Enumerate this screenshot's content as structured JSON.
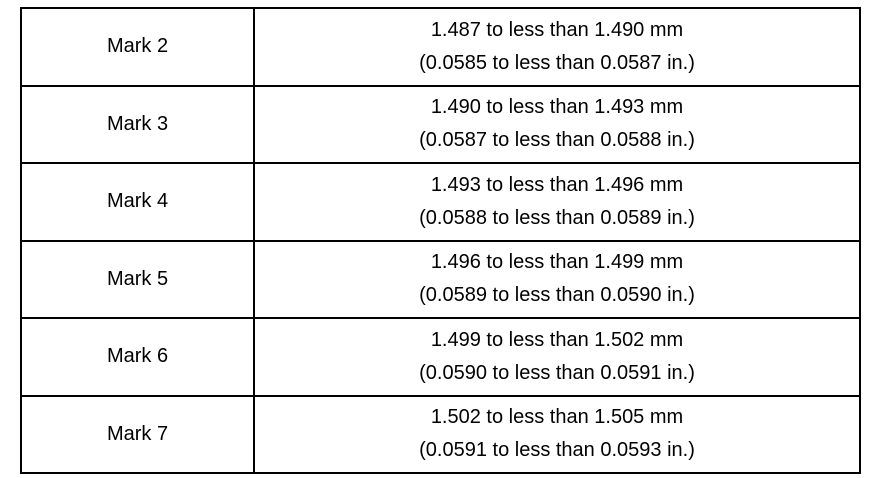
{
  "table": {
    "rows": [
      {
        "mark": "Mark 2",
        "mm": "1.487 to less than 1.490 mm",
        "inch": "(0.0585 to less than 0.0587 in.)"
      },
      {
        "mark": "Mark 3",
        "mm": "1.490 to less than 1.493 mm",
        "inch": "(0.0587 to less than 0.0588 in.)"
      },
      {
        "mark": "Mark 4",
        "mm": "1.493 to less than 1.496 mm",
        "inch": "(0.0588 to less than 0.0589 in.)"
      },
      {
        "mark": "Mark 5",
        "mm": "1.496 to less than 1.499 mm",
        "inch": "(0.0589 to less than 0.0590 in.)"
      },
      {
        "mark": "Mark 6",
        "mm": "1.499 to less than 1.502 mm",
        "inch": "(0.0590 to less than 0.0591 in.)"
      },
      {
        "mark": "Mark 7",
        "mm": "1.502 to less than 1.505 mm",
        "inch": "(0.0591 to less than 0.0593 in.)"
      }
    ]
  }
}
